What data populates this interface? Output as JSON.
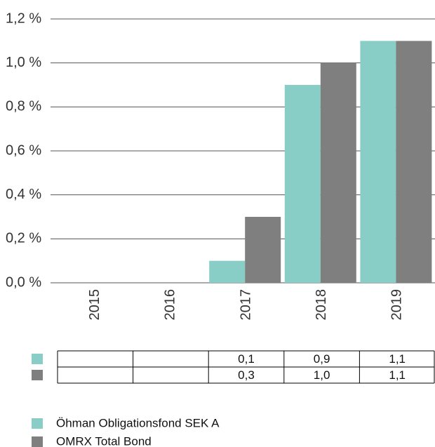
{
  "chart_data": {
    "type": "bar",
    "categories": [
      "2015",
      "2016",
      "2017",
      "2018",
      "2019"
    ],
    "series": [
      {
        "name": "Öhman Obligationsfond SEK A",
        "color": "#88cdc6",
        "values": [
          null,
          null,
          0.1,
          0.9,
          1.1
        ],
        "value_labels": [
          null,
          null,
          "0,1",
          "0,9",
          "1,1"
        ]
      },
      {
        "name": "OMRX Total Bond",
        "color": "#7f7f7f",
        "values": [
          null,
          null,
          0.3,
          1.0,
          1.1
        ],
        "value_labels": [
          null,
          null,
          "0,3",
          "1,0",
          "1,1"
        ]
      }
    ],
    "ylim": [
      0,
      1.2
    ],
    "yticks": [
      {
        "value": 0,
        "label": "0,0 %"
      },
      {
        "value": 0.2,
        "label": "0,2 %"
      },
      {
        "value": 0.4,
        "label": "0,4 %"
      },
      {
        "value": 0.6,
        "label": "0,6 %"
      },
      {
        "value": 0.8,
        "label": "0,8 %"
      },
      {
        "value": 1.0,
        "label": "1,0 %"
      },
      {
        "value": 1.2,
        "label": "1,2 %"
      }
    ],
    "grid": true
  }
}
